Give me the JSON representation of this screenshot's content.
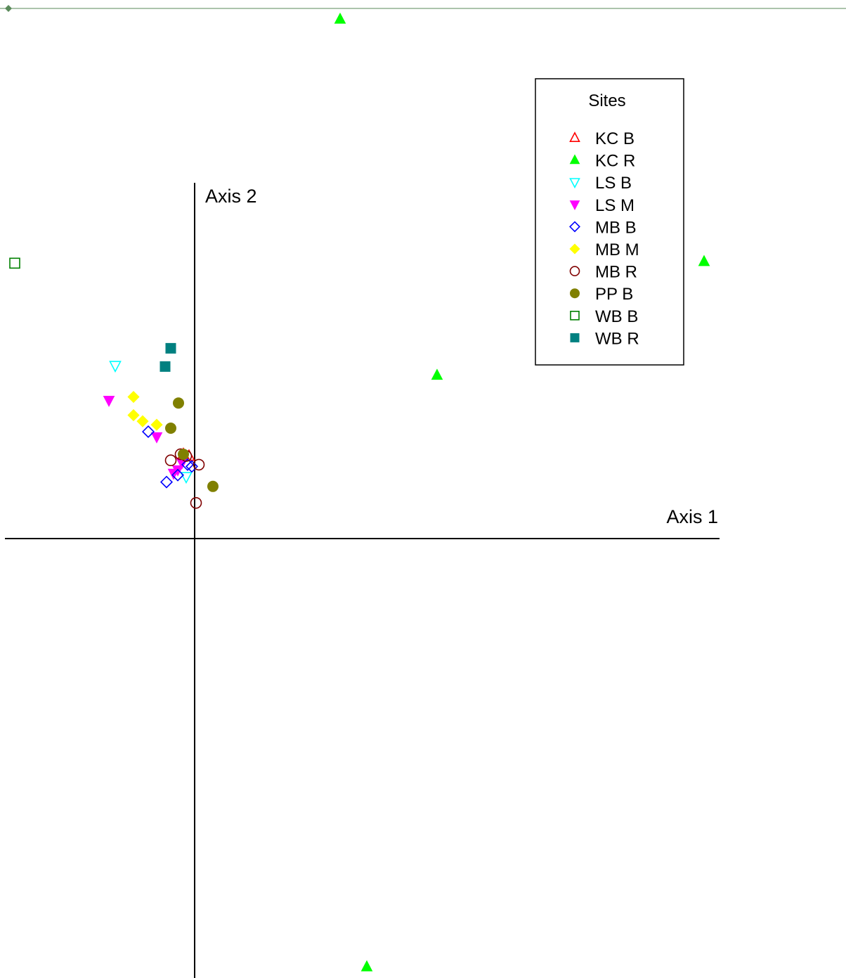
{
  "chart_data": {
    "type": "scatter",
    "title": "",
    "xlabel": "Axis 1",
    "ylabel": "Axis 2",
    "xlim": [
      -0.27,
      0.747
    ],
    "ylim": [
      -0.621,
      0.505
    ],
    "grid": false,
    "legend": {
      "title": "Sites",
      "placement": "top-right",
      "entries": [
        {
          "label": "KC B",
          "shape": "triangle-up",
          "filled": false,
          "color": "#ff0000"
        },
        {
          "label": "KC R",
          "shape": "triangle-up",
          "filled": true,
          "color": "#00ff00"
        },
        {
          "label": "LS B",
          "shape": "triangle-down",
          "filled": false,
          "color": "#00ffff"
        },
        {
          "label": "LS M",
          "shape": "triangle-down",
          "filled": true,
          "color": "#ff00ff"
        },
        {
          "label": "MB B",
          "shape": "diamond",
          "filled": false,
          "color": "#0000ff"
        },
        {
          "label": "MB M",
          "shape": "diamond",
          "filled": true,
          "color": "#ffff00"
        },
        {
          "label": "MB R",
          "shape": "circle",
          "filled": false,
          "color": "#800000"
        },
        {
          "label": "PP B",
          "shape": "circle",
          "filled": true,
          "color": "#808000"
        },
        {
          "label": "WB B",
          "shape": "square",
          "filled": false,
          "color": "#008000"
        },
        {
          "label": "WB R",
          "shape": "square",
          "filled": true,
          "color": "#008080"
        }
      ]
    },
    "series": [
      {
        "name": "KC B",
        "points": [
          [
            -0.016,
            -0.018
          ],
          [
            -0.008,
            -0.02
          ]
        ]
      },
      {
        "name": "KC R",
        "points": [
          [
            0.207,
            0.483
          ],
          [
            0.345,
            0.073
          ],
          [
            0.725,
            0.204
          ],
          [
            0.245,
            -0.608
          ]
        ]
      },
      {
        "name": "LS B",
        "points": [
          [
            -0.113,
            0.084
          ],
          [
            -0.012,
            -0.044
          ]
        ]
      },
      {
        "name": "LS M",
        "points": [
          [
            -0.122,
            0.044
          ],
          [
            -0.054,
            0.002
          ],
          [
            -0.03,
            -0.04
          ],
          [
            -0.024,
            -0.036
          ],
          [
            -0.018,
            -0.028
          ]
        ]
      },
      {
        "name": "MB B",
        "points": [
          [
            -0.066,
            0.008
          ],
          [
            -0.04,
            -0.05
          ],
          [
            -0.024,
            -0.042
          ],
          [
            -0.01,
            -0.03
          ],
          [
            -0.004,
            -0.032
          ]
        ]
      },
      {
        "name": "MB M",
        "points": [
          [
            -0.087,
            0.048
          ],
          [
            -0.087,
            0.027
          ],
          [
            -0.074,
            0.02
          ],
          [
            -0.054,
            0.016
          ]
        ]
      },
      {
        "name": "MB R",
        "points": [
          [
            -0.034,
            -0.025
          ],
          [
            -0.02,
            -0.018
          ],
          [
            0.006,
            -0.03
          ],
          [
            0.002,
            -0.074
          ],
          [
            -0.012,
            -0.02
          ]
        ]
      },
      {
        "name": "PP B",
        "points": [
          [
            -0.023,
            0.041
          ],
          [
            -0.034,
            0.012
          ],
          [
            -0.016,
            -0.018
          ],
          [
            0.026,
            -0.055
          ]
        ]
      },
      {
        "name": "WB B",
        "points": [
          [
            -0.256,
            0.202
          ]
        ]
      },
      {
        "name": "WB R",
        "points": [
          [
            -0.034,
            0.104
          ],
          [
            -0.042,
            0.083
          ]
        ]
      }
    ]
  }
}
